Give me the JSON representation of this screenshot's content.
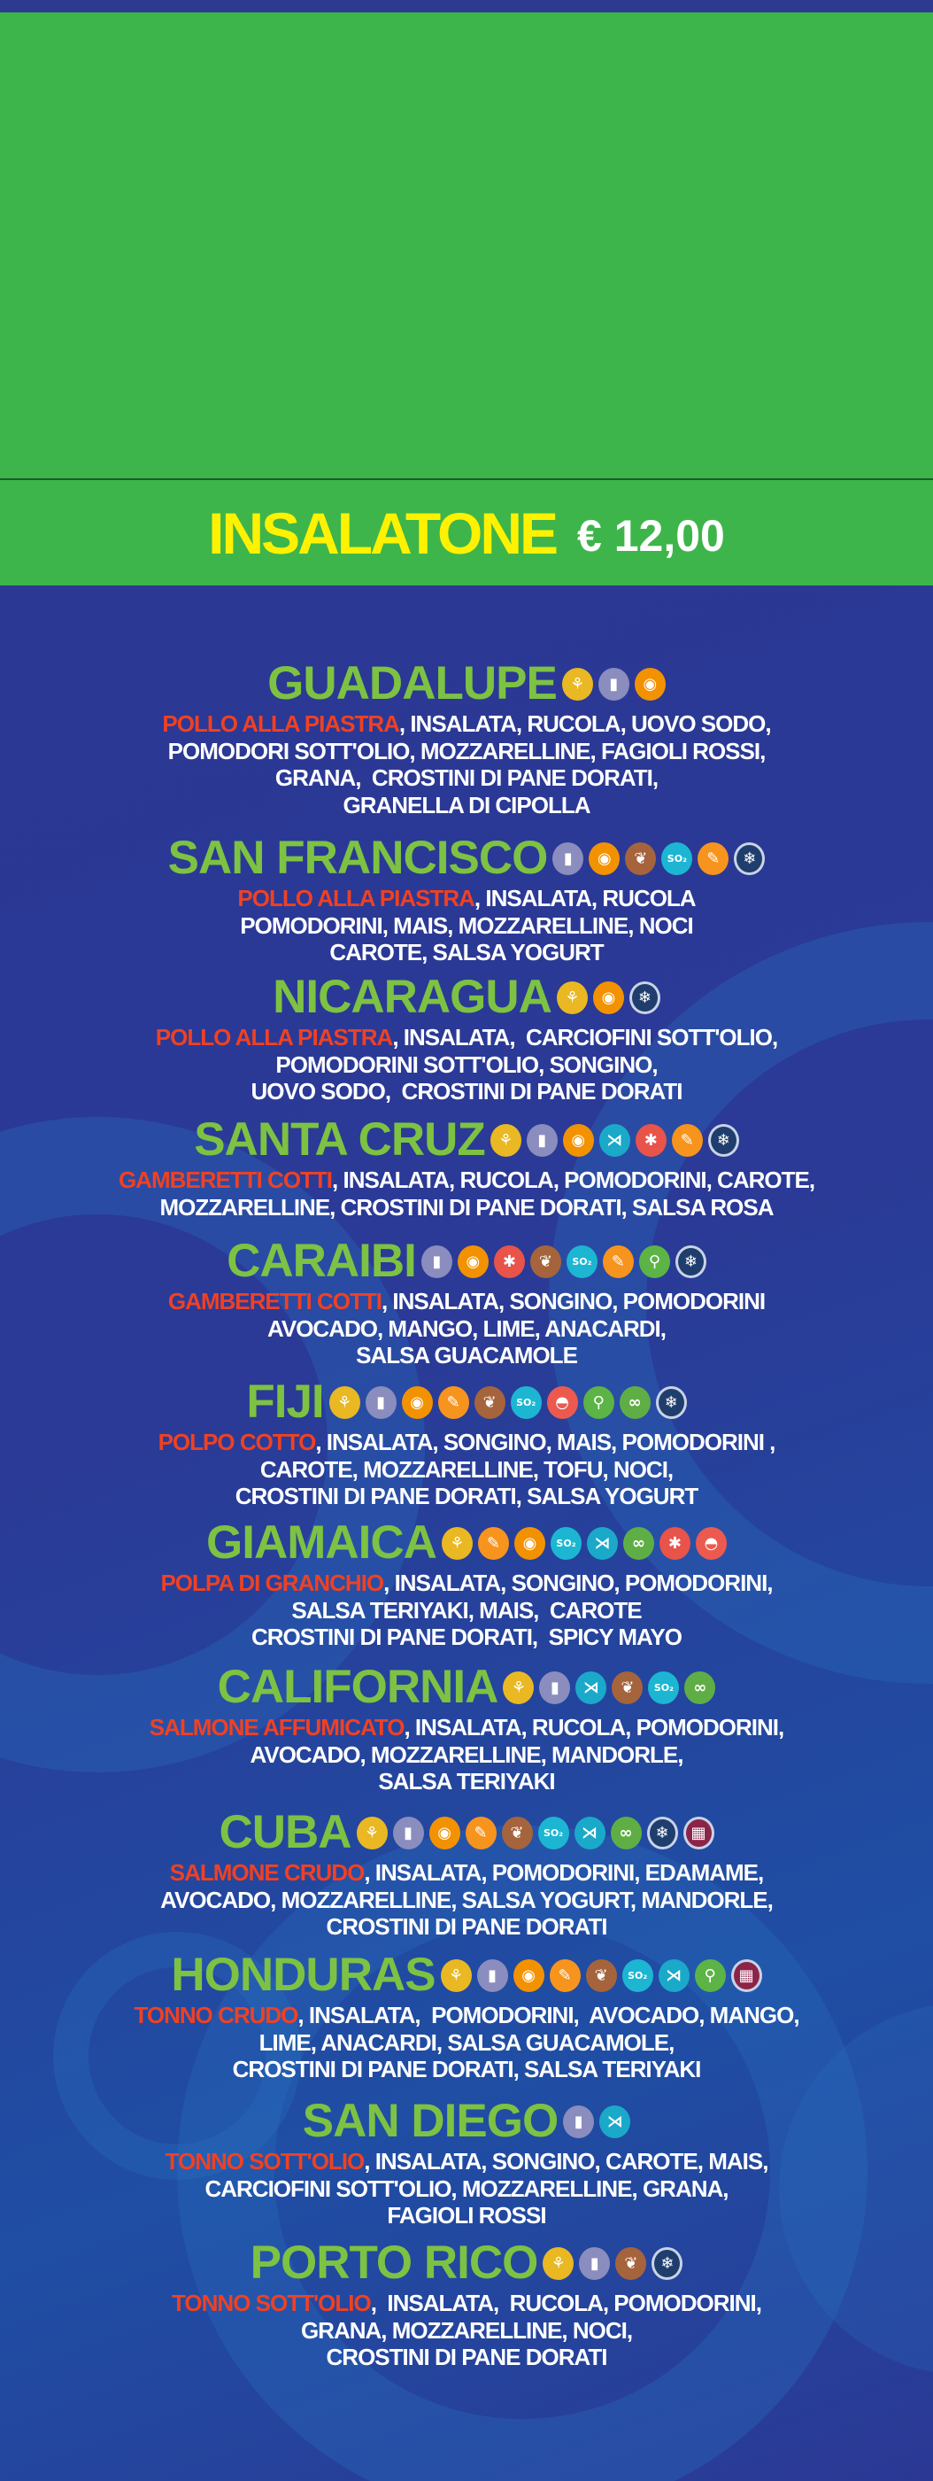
{
  "header": {
    "title": "INSALATONE",
    "price": "€ 12,00"
  },
  "colors": {
    "title": "#fff200",
    "name": "#7dc242",
    "highlight": "#ef4123",
    "green_band": "#3db54a",
    "background": "#2b3894"
  },
  "icon_styles": {
    "gluten": {
      "color": "#e9b823",
      "glyph": "⚘"
    },
    "milk": {
      "color": "#8a8dbd",
      "glyph": "▮"
    },
    "egg": {
      "color": "#f39200",
      "glyph": "◉"
    },
    "mustard": {
      "color": "#f7941d",
      "glyph": "✎"
    },
    "nuts": {
      "color": "#a5643c",
      "glyph": "❦"
    },
    "sulphites": {
      "color": "#1cb6d3",
      "glyph": "SO₂"
    },
    "fish": {
      "color": "#1ba9c9",
      "glyph": "⋊"
    },
    "crustaceans": {
      "color": "#e8534a",
      "glyph": "✱"
    },
    "molluscs": {
      "color": "#ec5a4f",
      "glyph": "◓"
    },
    "celery": {
      "color": "#5cb346",
      "glyph": "⚲"
    },
    "soy": {
      "color": "#5fae45",
      "glyph": "∞"
    },
    "frozen": {
      "color": "#1f3d6d",
      "glyph": "❄"
    },
    "maroon": {
      "color": "#8c2449",
      "glyph": "▦"
    }
  },
  "items": [
    {
      "name": "GUADALUPE",
      "allergens": [
        "gluten",
        "milk",
        "egg"
      ],
      "highlight": "POLLO ALLA PIASTRA",
      "lines": [
        ", INSALATA, RUCOLA, UOVO SODO,",
        "POMODORI SOTT'OLIO, MOZZARELLINE, FAGIOLI ROSSI,",
        "GRANA,  CROSTINI DI PANE DORATI,",
        "GRANELLA DI CIPOLLA"
      ]
    },
    {
      "name": "SAN FRANCISCO",
      "allergens": [
        "milk",
        "egg",
        "nuts",
        "sulphites",
        "mustard",
        "frozen"
      ],
      "highlight": "POLLO ALLA PIASTRA",
      "lines": [
        ", INSALATA, RUCOLA",
        "POMODORINI, MAIS, MOZZARELLINE, NOCI",
        "CAROTE, SALSA YOGURT"
      ]
    },
    {
      "name": "NICARAGUA",
      "allergens": [
        "gluten",
        "egg",
        "frozen"
      ],
      "highlight": "POLLO ALLA PIASTRA",
      "lines": [
        ", INSALATA,  CARCIOFINI SOTT'OLIO,",
        "POMODORINI SOTT'OLIO, SONGINO,",
        "UOVO SODO,  CROSTINI DI PANE DORATI"
      ]
    },
    {
      "name": "SANTA CRUZ",
      "allergens": [
        "gluten",
        "milk",
        "egg",
        "fish",
        "crustaceans",
        "mustard",
        "frozen"
      ],
      "highlight": "GAMBERETTI COTTI",
      "lines": [
        ", INSALATA, RUCOLA, POMODORINI, CAROTE,",
        "MOZZARELLINE, CROSTINI DI PANE DORATI, SALSA ROSA"
      ]
    },
    {
      "name": "CARAIBI",
      "allergens": [
        "milk",
        "egg",
        "crustaceans",
        "nuts",
        "sulphites",
        "mustard",
        "celery",
        "frozen"
      ],
      "highlight": "GAMBERETTI COTTI",
      "lines": [
        ", INSALATA, SONGINO, POMODORINI",
        "AVOCADO, MANGO, LIME, ANACARDI,",
        "SALSA GUACAMOLE"
      ]
    },
    {
      "name": "FIJI",
      "allergens": [
        "gluten",
        "milk",
        "egg",
        "mustard",
        "nuts",
        "sulphites",
        "molluscs",
        "celery",
        "soy",
        "frozen"
      ],
      "highlight": "POLPO COTTO",
      "lines": [
        ", INSALATA, SONGINO, MAIS, POMODORINI ,",
        "CAROTE, MOZZARELLINE, TOFU, NOCI,",
        "CROSTINI DI PANE DORATI, SALSA YOGURT"
      ]
    },
    {
      "name": "GIAMAICA",
      "allergens": [
        "gluten",
        "mustard",
        "egg",
        "sulphites",
        "fish",
        "soy",
        "crustaceans",
        "molluscs"
      ],
      "highlight": "POLPA DI GRANCHIO",
      "lines": [
        ", INSALATA, SONGINO, POMODORINI,",
        "SALSA TERIYAKI, MAIS,  CAROTE",
        "CROSTINI DI PANE DORATI,  SPICY MAYO"
      ]
    },
    {
      "name": "CALIFORNIA",
      "allergens": [
        "gluten",
        "milk",
        "fish",
        "nuts",
        "sulphites",
        "soy"
      ],
      "highlight": "SALMONE AFFUMICATO",
      "lines": [
        ", INSALATA, RUCOLA, POMODORINI,",
        "AVOCADO, MOZZARELLINE, MANDORLE,",
        "SALSA TERIYAKI"
      ]
    },
    {
      "name": "CUBA",
      "allergens": [
        "gluten",
        "milk",
        "egg",
        "mustard",
        "nuts",
        "sulphites",
        "fish",
        "soy",
        "frozen",
        "maroon"
      ],
      "highlight": "SALMONE CRUDO",
      "lines": [
        ", INSALATA, POMODORINI, EDAMAME,",
        "AVOCADO, MOZZARELLINE, SALSA YOGURT, MANDORLE,",
        "CROSTINI DI PANE DORATI"
      ]
    },
    {
      "name": "HONDURAS",
      "allergens": [
        "gluten",
        "milk",
        "egg",
        "mustard",
        "nuts",
        "sulphites",
        "fish",
        "celery",
        "maroon"
      ],
      "highlight": "TONNO CRUDO",
      "lines": [
        ", INSALATA,  POMODORINI,  AVOCADO, MANGO,",
        "LIME, ANACARDI, SALSA GUACAMOLE,",
        "CROSTINI DI PANE DORATI, SALSA TERIYAKI"
      ]
    },
    {
      "name": "SAN DIEGO",
      "allergens": [
        "milk",
        "fish"
      ],
      "highlight": "TONNO SOTT'OLIO",
      "lines": [
        ", INSALATA, SONGINO, CAROTE, MAIS,",
        "CARCIOFINI SOTT'OLIO, MOZZARELLINE, GRANA,",
        "FAGIOLI ROSSI"
      ]
    },
    {
      "name": "PORTO RICO",
      "allergens": [
        "gluten",
        "milk",
        "nuts",
        "frozen"
      ],
      "highlight": "TONNO SOTT'OLIO",
      "lines": [
        ",  INSALATA,  RUCOLA, POMODORINI,",
        "GRANA, MOZZARELLINE, NOCI,",
        "CROSTINI DI PANE DORATI"
      ]
    }
  ]
}
